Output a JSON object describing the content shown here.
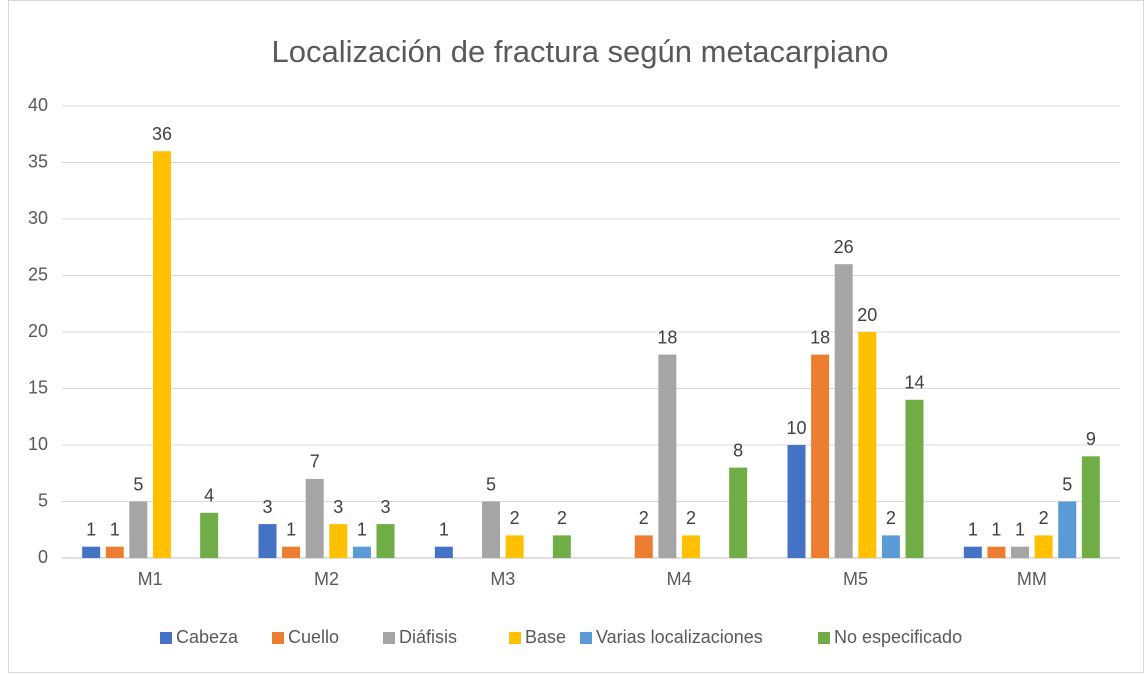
{
  "chart_data": {
    "type": "bar",
    "title": "Localización de fractura según metacarpiano",
    "categories": [
      "M1",
      "M2",
      "M3",
      "M4",
      "M5",
      "MM"
    ],
    "series": [
      {
        "name": "Cabeza",
        "color": "#4472c4",
        "values": [
          1,
          3,
          1,
          null,
          10,
          1
        ]
      },
      {
        "name": "Cuello",
        "color": "#ed7d31",
        "values": [
          1,
          1,
          null,
          2,
          18,
          1
        ]
      },
      {
        "name": "Diáfisis",
        "color": "#a5a5a5",
        "values": [
          5,
          7,
          5,
          18,
          26,
          1
        ]
      },
      {
        "name": "Base",
        "color": "#ffc000",
        "values": [
          36,
          3,
          2,
          2,
          20,
          2
        ]
      },
      {
        "name": "Varias localizaciones",
        "color": "#5b9bd5",
        "values": [
          null,
          1,
          null,
          null,
          2,
          5
        ]
      },
      {
        "name": "No especificado",
        "color": "#70ad47",
        "values": [
          4,
          3,
          2,
          8,
          14,
          9
        ]
      }
    ],
    "ylim": [
      0,
      40
    ],
    "yticks": [
      0,
      5,
      10,
      15,
      20,
      25,
      30,
      35,
      40
    ],
    "grid": true,
    "legend": "bottom"
  }
}
